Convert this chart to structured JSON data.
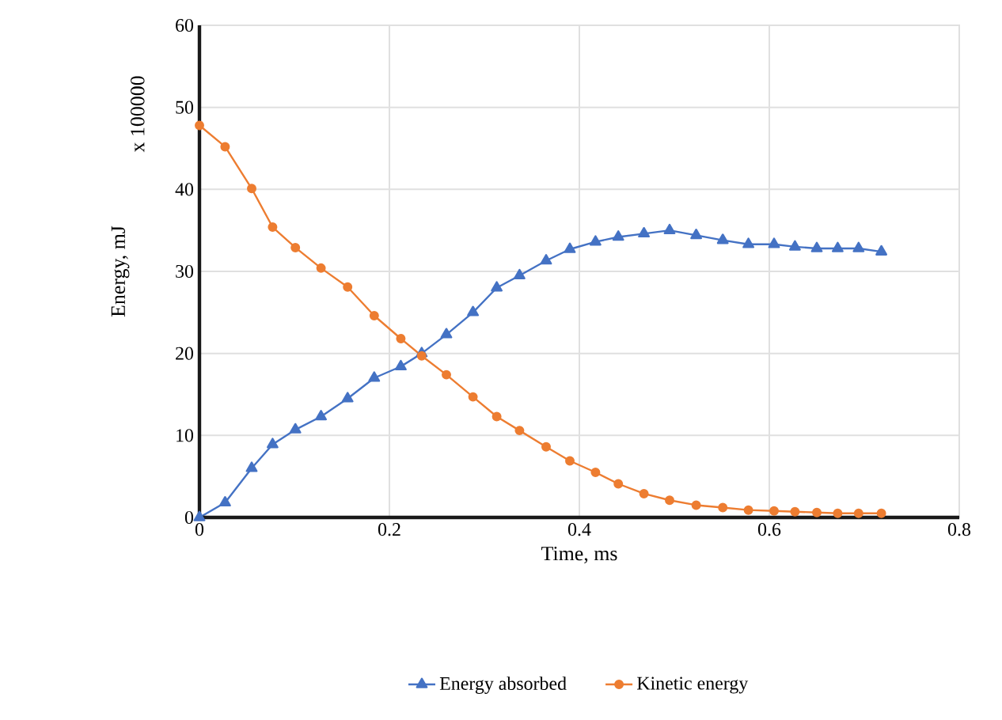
{
  "chart_data": {
    "type": "line",
    "xlabel": "Time, ms",
    "ylabel": "Energy, mJ",
    "annotations": [
      "x 100000"
    ],
    "xlim": [
      0,
      0.8
    ],
    "xticks": [
      0,
      0.2,
      0.4,
      0.6,
      0.8
    ],
    "ylim": [
      0,
      60
    ],
    "yticks": [
      0,
      10,
      20,
      30,
      40,
      50,
      60
    ],
    "grid": true,
    "legend": "bottom",
    "line_style": "solid",
    "x": [
      0,
      0.027,
      0.055,
      0.077,
      0.101,
      0.128,
      0.156,
      0.184,
      0.212,
      0.234,
      0.26,
      0.288,
      0.313,
      0.337,
      0.365,
      0.39,
      0.417,
      0.441,
      0.468,
      0.495,
      0.523,
      0.551,
      0.578,
      0.605,
      0.627,
      0.65,
      0.672,
      0.694,
      0.718
    ],
    "series": [
      {
        "name": "Energy absorbed",
        "color": "#4472c4",
        "marker": "triangle",
        "values": [
          0,
          1.8,
          6,
          8.9,
          10.7,
          12.3,
          14.5,
          17,
          18.4,
          20,
          22.3,
          25,
          28,
          29.5,
          31.3,
          32.7,
          33.6,
          34.2,
          34.6,
          35,
          34.4,
          33.8,
          33.3,
          33.3,
          33,
          32.8,
          32.8,
          32.8,
          32.4
        ]
      },
      {
        "name": "Kinetic energy",
        "color": "#ed7d31",
        "marker": "circle",
        "values": [
          47.8,
          45.2,
          40.1,
          35.4,
          32.9,
          30.4,
          28.1,
          24.6,
          21.8,
          19.7,
          17.4,
          14.7,
          12.3,
          10.6,
          8.6,
          6.9,
          5.5,
          4.1,
          2.9,
          2.1,
          1.5,
          1.2,
          0.9,
          0.8,
          0.7,
          0.6,
          0.5,
          0.5,
          0.5
        ]
      }
    ]
  }
}
